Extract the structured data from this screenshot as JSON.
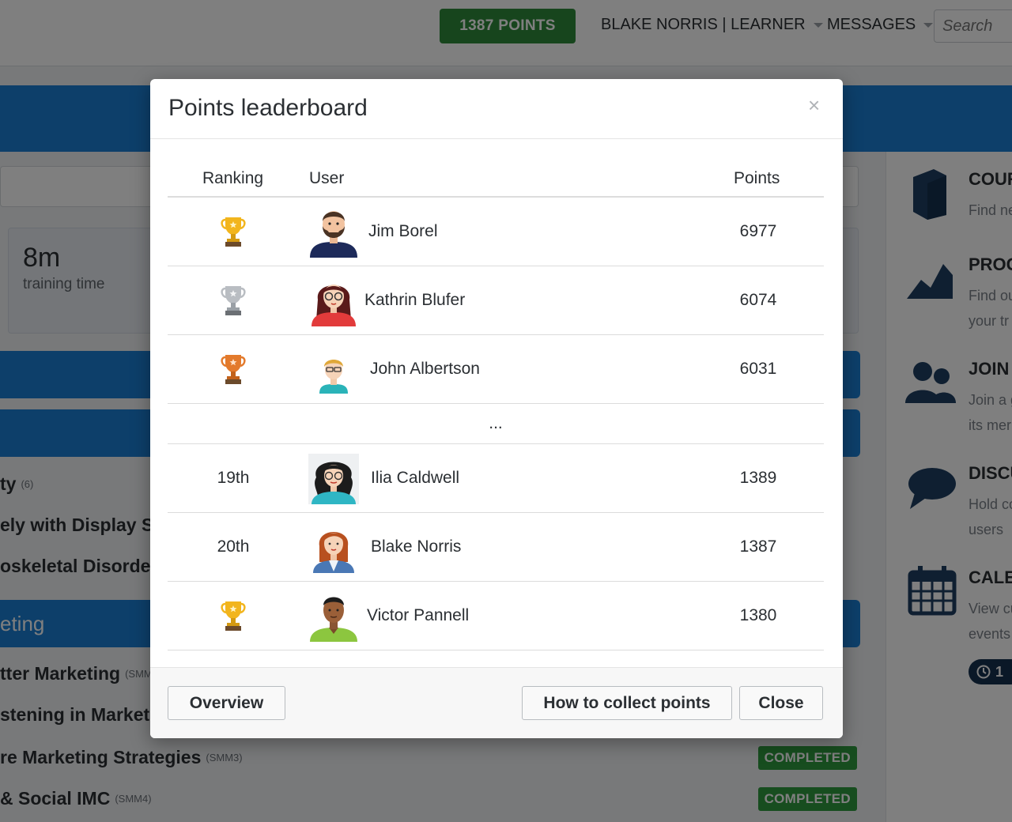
{
  "topbar": {
    "points_label": "1387 POINTS",
    "user_label": "BLAKE NORRIS | LEARNER",
    "messages_label": "MESSAGES",
    "search_placeholder": "Search"
  },
  "stats": {
    "training_time_value": "8m",
    "training_time_label": "training time"
  },
  "courses": {
    "section_title": "eting",
    "rows": [
      {
        "title": "ty",
        "code": "(6)",
        "status": ""
      },
      {
        "title": "ely with Display Sc",
        "code": "",
        "status": ""
      },
      {
        "title": "oskeletal Disorders",
        "code": "",
        "status": ""
      },
      {
        "title": "tter Marketing",
        "code": "(SMM",
        "status": ""
      },
      {
        "title": "stening in Marketi",
        "code": "",
        "status": ""
      },
      {
        "title": "re Marketing Strategies",
        "code": "(SMM3)",
        "status": "COMPLETED"
      },
      {
        "title": "& Social IMC",
        "code": "(SMM4)",
        "status": "COMPLETED"
      }
    ]
  },
  "right_sidebar": {
    "items": [
      {
        "title": "COUR",
        "desc_1": "Find ne",
        "desc_2": ""
      },
      {
        "title": "PROG",
        "desc_1": "Find ou",
        "desc_2": "your tr"
      },
      {
        "title": "JOIN",
        "desc_1": "Join a g",
        "desc_2": "its mer"
      },
      {
        "title": "DISCU",
        "desc_1": "Hold co",
        "desc_2": "users"
      },
      {
        "title": "CALE",
        "desc_1": "View cu",
        "desc_2": "events"
      }
    ],
    "calendar_badge": "1"
  },
  "modal": {
    "title": "Points leaderboard",
    "close_x": "×",
    "columns": {
      "ranking": "Ranking",
      "user": "User",
      "points": "Points"
    },
    "rows": [
      {
        "rank": "",
        "rank_icon": "trophy-gold-icon",
        "name": "Jim Borel",
        "points": "6977",
        "avatar": "avatar-man-beard"
      },
      {
        "rank": "",
        "rank_icon": "trophy-silver-icon",
        "name": "Kathrin Blufer",
        "points": "6074",
        "avatar": "avatar-woman-glasses"
      },
      {
        "rank": "",
        "rank_icon": "trophy-bronze-icon",
        "name": "John Albertson",
        "points": "6031",
        "avatar": "avatar-man-glasses"
      }
    ],
    "ellipsis": "...",
    "rows_after": [
      {
        "rank": "19th",
        "rank_icon": "",
        "name": "Ilia Caldwell",
        "points": "1389",
        "avatar": "avatar-woman-curly"
      },
      {
        "rank": "20th",
        "rank_icon": "",
        "name": "Blake Norris",
        "points": "1387",
        "avatar": "avatar-woman-redhair"
      },
      {
        "rank": "",
        "rank_icon": "trophy-gold-icon",
        "name": "Victor Pannell",
        "points": "1380",
        "avatar": "avatar-man-dark"
      }
    ],
    "buttons": {
      "overview": "Overview",
      "how_to": "How to collect points",
      "close": "Close"
    }
  },
  "colors": {
    "points_green": "#2e8b3a",
    "brand_blue": "#1a7fd4",
    "gold": "#f2b51d",
    "silver": "#a9adb2",
    "bronze": "#e37a2c"
  }
}
